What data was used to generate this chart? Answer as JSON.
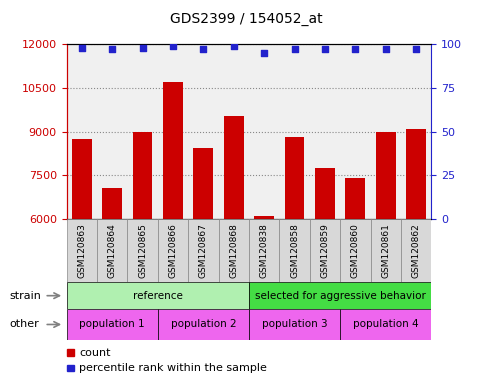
{
  "title": "GDS2399 / 154052_at",
  "samples": [
    "GSM120863",
    "GSM120864",
    "GSM120865",
    "GSM120866",
    "GSM120867",
    "GSM120868",
    "GSM120838",
    "GSM120858",
    "GSM120859",
    "GSM120860",
    "GSM120861",
    "GSM120862"
  ],
  "counts": [
    8750,
    7050,
    9000,
    10700,
    8450,
    9550,
    6100,
    8800,
    7750,
    7400,
    9000,
    9100
  ],
  "percentile_ranks": [
    98,
    97,
    98,
    99,
    97,
    99,
    95,
    97,
    97,
    97,
    97,
    97
  ],
  "ylim_left": [
    6000,
    12000
  ],
  "ylim_right": [
    0,
    100
  ],
  "yticks_left": [
    6000,
    7500,
    9000,
    10500,
    12000
  ],
  "yticks_right": [
    0,
    25,
    50,
    75,
    100
  ],
  "bar_color": "#cc0000",
  "dot_color": "#2222cc",
  "strain_groups": [
    {
      "label": "reference",
      "start": 0,
      "end": 6,
      "color": "#b0f0b0"
    },
    {
      "label": "selected for aggressive behavior",
      "start": 6,
      "end": 12,
      "color": "#44dd44"
    }
  ],
  "other_groups": [
    {
      "label": "population 1",
      "start": 0,
      "end": 3,
      "color": "#ee66ee"
    },
    {
      "label": "population 2",
      "start": 3,
      "end": 6,
      "color": "#ee66ee"
    },
    {
      "label": "population 3",
      "start": 6,
      "end": 9,
      "color": "#ee66ee"
    },
    {
      "label": "population 4",
      "start": 9,
      "end": 12,
      "color": "#ee66ee"
    }
  ],
  "strain_label": "strain",
  "other_label": "other",
  "legend_count_label": "count",
  "legend_pct_label": "percentile rank within the sample",
  "grid_color": "#888888",
  "axis_left_color": "#cc0000",
  "axis_right_color": "#2222cc",
  "bg_color": "#ffffff",
  "plot_bg_color": "#f0f0f0",
  "xtick_bg_color": "#d8d8d8"
}
